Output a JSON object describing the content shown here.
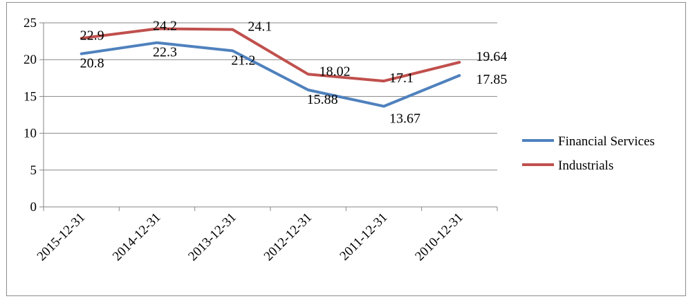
{
  "chart_data": {
    "type": "line",
    "title": "",
    "xlabel": "",
    "ylabel": "",
    "categories": [
      "2015-12-31",
      "2014-12-31",
      "2013-12-31",
      "2012-12-31",
      "2011-12-31",
      "2010-12-31"
    ],
    "ylim": [
      0,
      25
    ],
    "yticks": [
      0,
      5,
      10,
      15,
      20,
      25
    ],
    "grid": true,
    "legend_position": "right",
    "series": [
      {
        "name": "Financial Services",
        "color": "#4f81bd",
        "values": [
          20.8,
          22.3,
          21.2,
          15.88,
          13.67,
          17.85
        ],
        "labels": [
          "20.8",
          "22.3",
          "21.2",
          "15.88",
          "13.67",
          "17.85"
        ]
      },
      {
        "name": "Industrials",
        "color": "#c0504d",
        "values": [
          22.9,
          24.2,
          24.1,
          18.02,
          17.1,
          19.64
        ],
        "labels": [
          "22.9",
          "24.2",
          "24.1",
          "18.02",
          "17.1",
          "19.64"
        ]
      }
    ]
  }
}
